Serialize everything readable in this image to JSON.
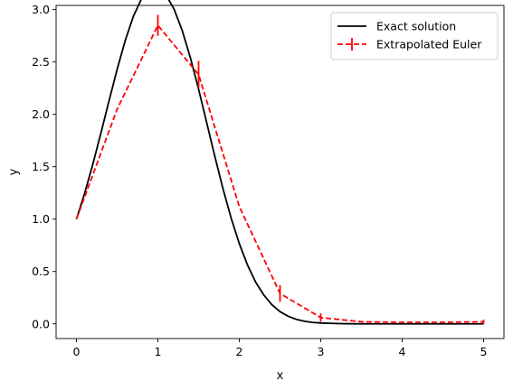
{
  "chart_data": {
    "type": "line",
    "title": "",
    "xlabel": "x",
    "ylabel": "y",
    "xlim": [
      -0.25,
      5.25
    ],
    "ylim": [
      -0.14,
      3.04
    ],
    "xticks": [
      0,
      1,
      2,
      3,
      4,
      5
    ],
    "xtick_labels": [
      "0",
      "1",
      "2",
      "3",
      "4",
      "5"
    ],
    "yticks": [
      0.0,
      0.5,
      1.0,
      1.5,
      2.0,
      2.5,
      3.0
    ],
    "ytick_labels": [
      "0.0",
      "0.5",
      "1.0",
      "1.5",
      "2.0",
      "2.5",
      "3.0"
    ],
    "grid": false,
    "legend_position": "top-right",
    "series": [
      {
        "name": "Exact solution",
        "color": "#000000",
        "style": "solid",
        "x": [
          0,
          0.1,
          0.2,
          0.3,
          0.4,
          0.5,
          0.6,
          0.7,
          0.8,
          0.9,
          1.0,
          1.1,
          1.2,
          1.3,
          1.4,
          1.5,
          1.6,
          1.7,
          1.8,
          1.9,
          2.0,
          2.1,
          2.2,
          2.3,
          2.4,
          2.5,
          2.6,
          2.7,
          2.8,
          2.9,
          3.0,
          3.25,
          3.5,
          3.75,
          4.0,
          4.5,
          5.0
        ],
        "y": [
          1.0,
          1.245,
          1.521,
          1.82,
          2.129,
          2.431,
          2.707,
          2.938,
          3.105,
          3.195,
          3.205,
          3.14,
          3.002,
          2.798,
          2.538,
          2.24,
          1.919,
          1.597,
          1.288,
          1.009,
          0.766,
          0.563,
          0.4,
          0.276,
          0.183,
          0.117,
          0.073,
          0.043,
          0.025,
          0.014,
          0.008,
          0.002,
          0.0,
          0.0,
          0.0,
          0.0,
          0.0
        ]
      },
      {
        "name": "Extrapolated Euler",
        "color": "#ff0000",
        "style": "dashed",
        "x": [
          0,
          0.5,
          1.0,
          1.5,
          2.0,
          2.5,
          3.0,
          3.5,
          4.0,
          4.5,
          5.0
        ],
        "y": [
          1.0,
          2.05,
          2.85,
          2.38,
          1.12,
          0.29,
          0.06,
          0.02,
          0.015,
          0.015,
          0.02
        ],
        "yerr": [
          0,
          0,
          0.1,
          0.13,
          0,
          0.08,
          0.04,
          0,
          0,
          0,
          0.02
        ]
      }
    ]
  }
}
